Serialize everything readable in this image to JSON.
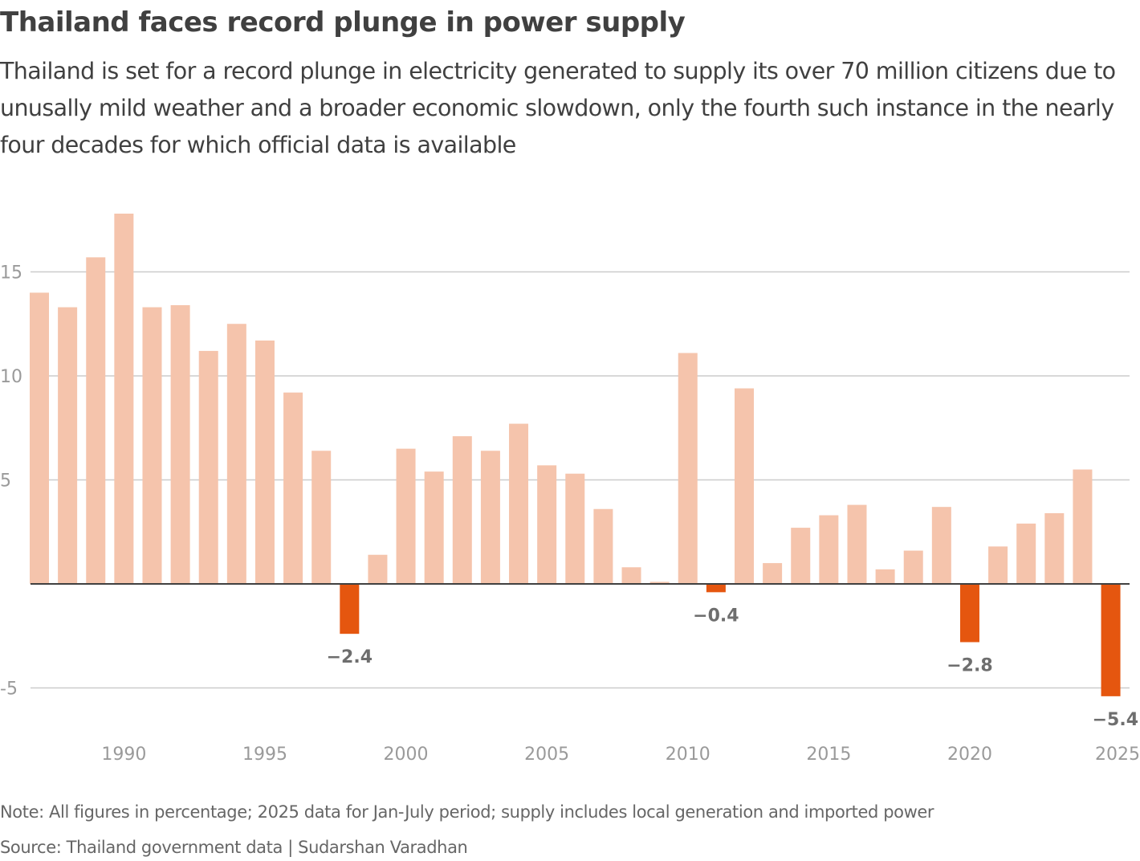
{
  "header": {
    "title": "Thailand faces record plunge in power supply",
    "subtitle": "Thailand is set for a record plunge in electricity generated to supply its over 70 million citizens due to unusally mild weather and a broader economic slowdown, only the fourth such instance in the nearly four decades for which official data is available"
  },
  "footer": {
    "note": "Note: All figures in percentage; 2025 data for Jan-July period; supply includes local generation and imported power",
    "source": "Source: Thailand government data | Sudarshan Varadhan"
  },
  "colors": {
    "positive": "#f5c4ac",
    "negative": "#e5560f",
    "gridline": "#cccccc",
    "baseline": "#404040"
  },
  "chart_data": {
    "type": "bar",
    "title": "Thailand faces record plunge in power supply",
    "xlabel": "",
    "ylabel": "",
    "unit": "%",
    "categories": [
      1987,
      1988,
      1989,
      1990,
      1991,
      1992,
      1993,
      1994,
      1995,
      1996,
      1997,
      1998,
      1999,
      2000,
      2001,
      2002,
      2003,
      2004,
      2005,
      2006,
      2007,
      2008,
      2009,
      2010,
      2011,
      2012,
      2013,
      2014,
      2015,
      2016,
      2017,
      2018,
      2019,
      2020,
      2021,
      2022,
      2023,
      2024,
      2025
    ],
    "values": [
      14.0,
      13.3,
      15.7,
      17.8,
      13.3,
      13.4,
      11.2,
      12.5,
      11.7,
      9.2,
      6.4,
      -2.4,
      1.4,
      6.5,
      5.4,
      7.1,
      6.4,
      7.7,
      5.7,
      5.3,
      3.6,
      0.8,
      0.1,
      11.1,
      -0.4,
      9.4,
      1.0,
      2.7,
      3.3,
      3.8,
      0.7,
      1.6,
      3.7,
      -2.8,
      1.8,
      2.9,
      3.4,
      5.5,
      -5.4
    ],
    "ylim": [
      -7,
      18
    ],
    "yticks": [
      -5,
      0,
      5,
      10,
      15
    ],
    "ytick_labels": [
      "-5",
      "",
      "5",
      "10",
      "15"
    ],
    "xticks": [
      1990,
      1995,
      2000,
      2005,
      2010,
      2015,
      2020,
      2025
    ],
    "xtick_labels": [
      "1990",
      "1995",
      "2000",
      "2005",
      "2010",
      "2015",
      "2020",
      "2025"
    ],
    "grid": true,
    "annotations": [
      {
        "year": 1998,
        "text": "−2.4"
      },
      {
        "year": 2011,
        "text": "−0.4"
      },
      {
        "year": 2020,
        "text": "−2.8"
      },
      {
        "year": 2025,
        "text": "−5.4"
      }
    ],
    "legend": "none"
  }
}
